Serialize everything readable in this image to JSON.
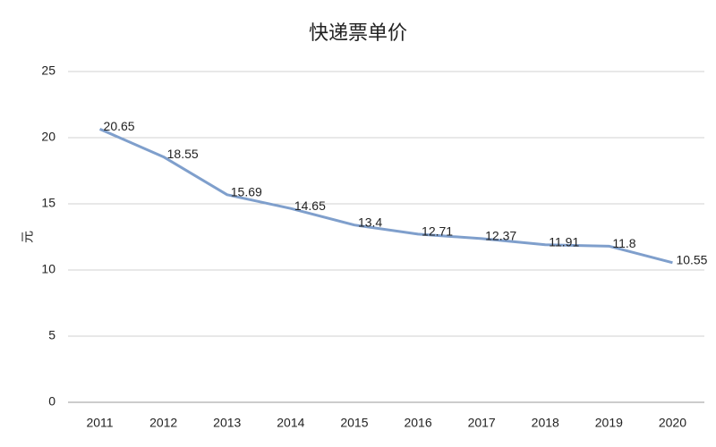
{
  "chart_data": {
    "type": "line",
    "title": "快递票单价",
    "y_label": "元",
    "categories": [
      "2011",
      "2012",
      "2013",
      "2014",
      "2015",
      "2016",
      "2017",
      "2018",
      "2019",
      "2020"
    ],
    "series": [
      {
        "name": "快递票单价",
        "color": "#7f9fcc",
        "values": [
          20.65,
          18.55,
          15.69,
          14.65,
          13.4,
          12.71,
          12.37,
          11.91,
          11.8,
          10.55
        ]
      }
    ],
    "ylim": [
      0,
      25
    ],
    "yticks": [
      0,
      5,
      10,
      15,
      20,
      25
    ],
    "grid": true,
    "data_labels": true
  }
}
